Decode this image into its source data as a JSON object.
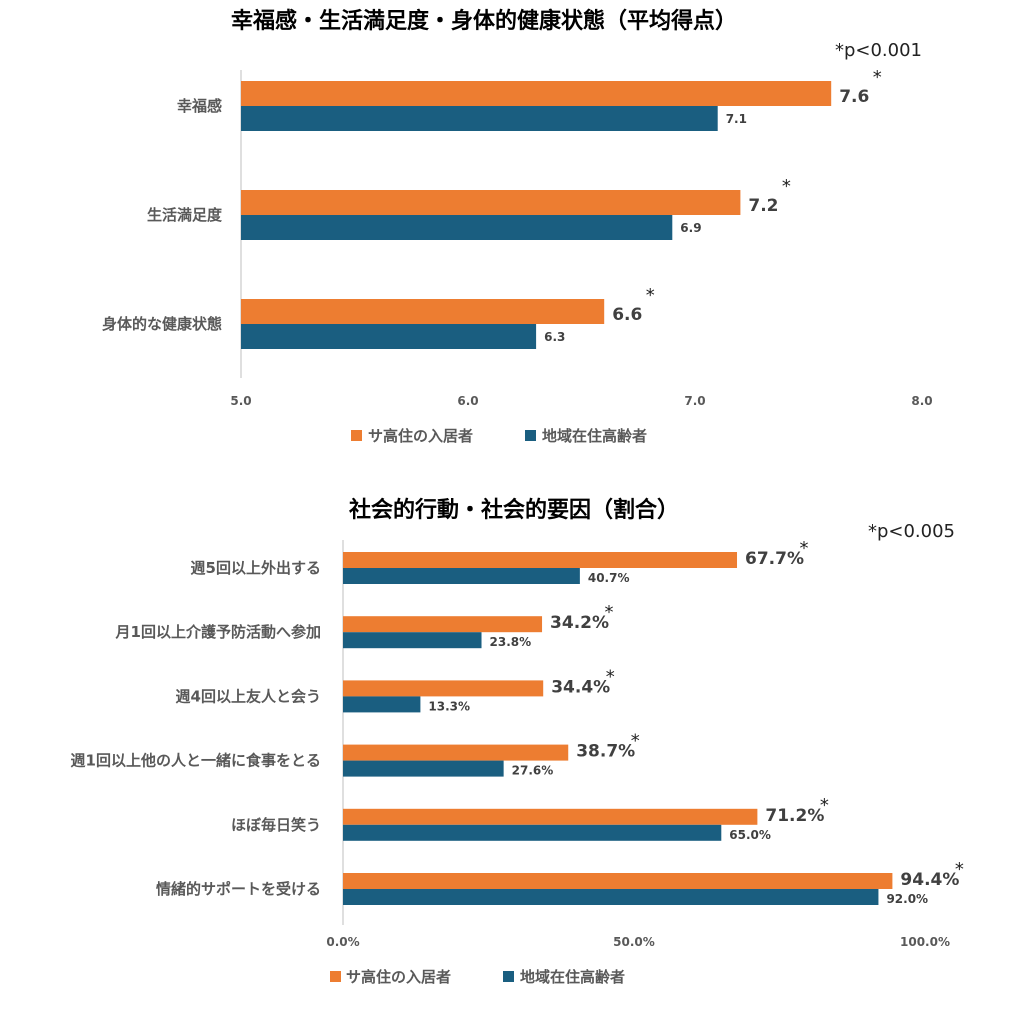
{
  "colors": {
    "series1": "#ED7D31",
    "series2": "#1A5E80",
    "axis": "#BFBFBF"
  },
  "chart_data": [
    {
      "type": "bar",
      "orientation": "horizontal",
      "title": "幸福感・生活満足度・身体的健康状態（平均得点）",
      "note": "*p<0.001",
      "categories": [
        "幸福感",
        "生活満足度",
        "身体的な健康状態"
      ],
      "series": [
        {
          "name": "サ高住の入居者",
          "values": [
            7.6,
            7.2,
            6.6
          ],
          "labels": [
            "7.6",
            "7.2",
            "6.6"
          ],
          "significant": true
        },
        {
          "name": "地域在住高齢者",
          "values": [
            7.1,
            6.9,
            6.3
          ],
          "labels": [
            "7.1",
            "6.9",
            "6.3"
          ]
        }
      ],
      "xlim": [
        5.0,
        8.0
      ],
      "ticks": [
        "5.0",
        "6.0",
        "7.0",
        "8.0"
      ],
      "legend": "bottom"
    },
    {
      "type": "bar",
      "orientation": "horizontal",
      "title": "社会的行動・社会的要因（割合）",
      "note": "*p<0.005",
      "categories": [
        "週5回以上外出する",
        "月1回以上介護予防活動へ参加",
        "週4回以上友人と会う",
        "週1回以上他の人と一緒に食事をとる",
        "ほぼ毎日笑う",
        "情緒的サポートを受ける"
      ],
      "series": [
        {
          "name": "サ高住の入居者",
          "values": [
            67.7,
            34.2,
            34.4,
            38.7,
            71.2,
            94.4
          ],
          "labels": [
            "67.7%",
            "34.2%",
            "34.4%",
            "38.7%",
            "71.2%",
            "94.4%"
          ],
          "significant": true
        },
        {
          "name": "地域在住高齢者",
          "values": [
            40.7,
            23.8,
            13.3,
            27.6,
            65.0,
            92.0
          ],
          "labels": [
            "40.7%",
            "23.8%",
            "13.3%",
            "27.6%",
            "65.0%",
            "92.0%"
          ]
        }
      ],
      "xlim": [
        0,
        100
      ],
      "ticks": [
        "0.0%",
        "50.0%",
        "100.0%"
      ],
      "legend": "bottom"
    }
  ]
}
